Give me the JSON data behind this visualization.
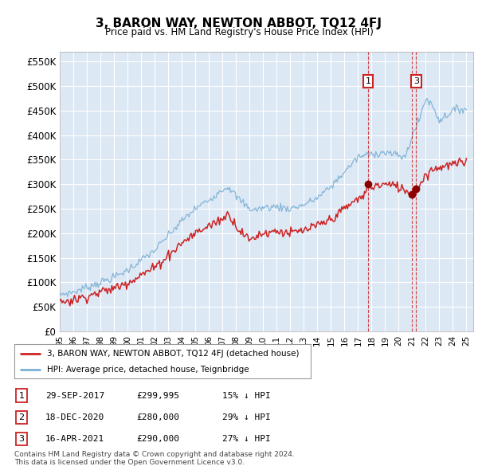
{
  "title": "3, BARON WAY, NEWTON ABBOT, TQ12 4FJ",
  "subtitle": "Price paid vs. HM Land Registry's House Price Index (HPI)",
  "ylabel_ticks": [
    "£0",
    "£50K",
    "£100K",
    "£150K",
    "£200K",
    "£250K",
    "£300K",
    "£350K",
    "£400K",
    "£450K",
    "£500K",
    "£550K"
  ],
  "ytick_values": [
    0,
    50000,
    100000,
    150000,
    200000,
    250000,
    300000,
    350000,
    400000,
    450000,
    500000,
    550000
  ],
  "ylim": [
    0,
    570000
  ],
  "plot_bg_color": "#dde8f5",
  "background_color": "#ffffff",
  "grid_color": "#ffffff",
  "hpi_color": "#7ab0d4",
  "prop_color": "#cc2222",
  "sale_markers": [
    {
      "label": "1",
      "date_x": 2017.75,
      "price": 299995
    },
    {
      "label": "3",
      "date_x": 2021.29,
      "price": 290000
    }
  ],
  "vline_marker_dates": [
    2017.75,
    2021.29
  ],
  "legend_entries": [
    {
      "label": "3, BARON WAY, NEWTON ABBOT, TQ12 4FJ (detached house)",
      "color": "#cc2222"
    },
    {
      "label": "HPI: Average price, detached house, Teignbridge",
      "color": "#7ab0d4"
    }
  ],
  "table_rows": [
    {
      "num": "1",
      "date": "29-SEP-2017",
      "price": "£299,995",
      "hpi": "15% ↓ HPI"
    },
    {
      "num": "2",
      "date": "18-DEC-2020",
      "price": "£280,000",
      "hpi": "29% ↓ HPI"
    },
    {
      "num": "3",
      "date": "16-APR-2021",
      "price": "£290,000",
      "hpi": "27% ↓ HPI"
    }
  ],
  "footnote": "Contains HM Land Registry data © Crown copyright and database right 2024.\nThis data is licensed under the Open Government Licence v3.0.",
  "xmin": 1995.0,
  "xmax": 2025.5,
  "xticks": [
    1995,
    1996,
    1997,
    1998,
    1999,
    2000,
    2001,
    2002,
    2003,
    2004,
    2005,
    2006,
    2007,
    2008,
    2009,
    2010,
    2011,
    2012,
    2013,
    2014,
    2015,
    2016,
    2017,
    2018,
    2019,
    2020,
    2021,
    2022,
    2023,
    2024,
    2025
  ]
}
